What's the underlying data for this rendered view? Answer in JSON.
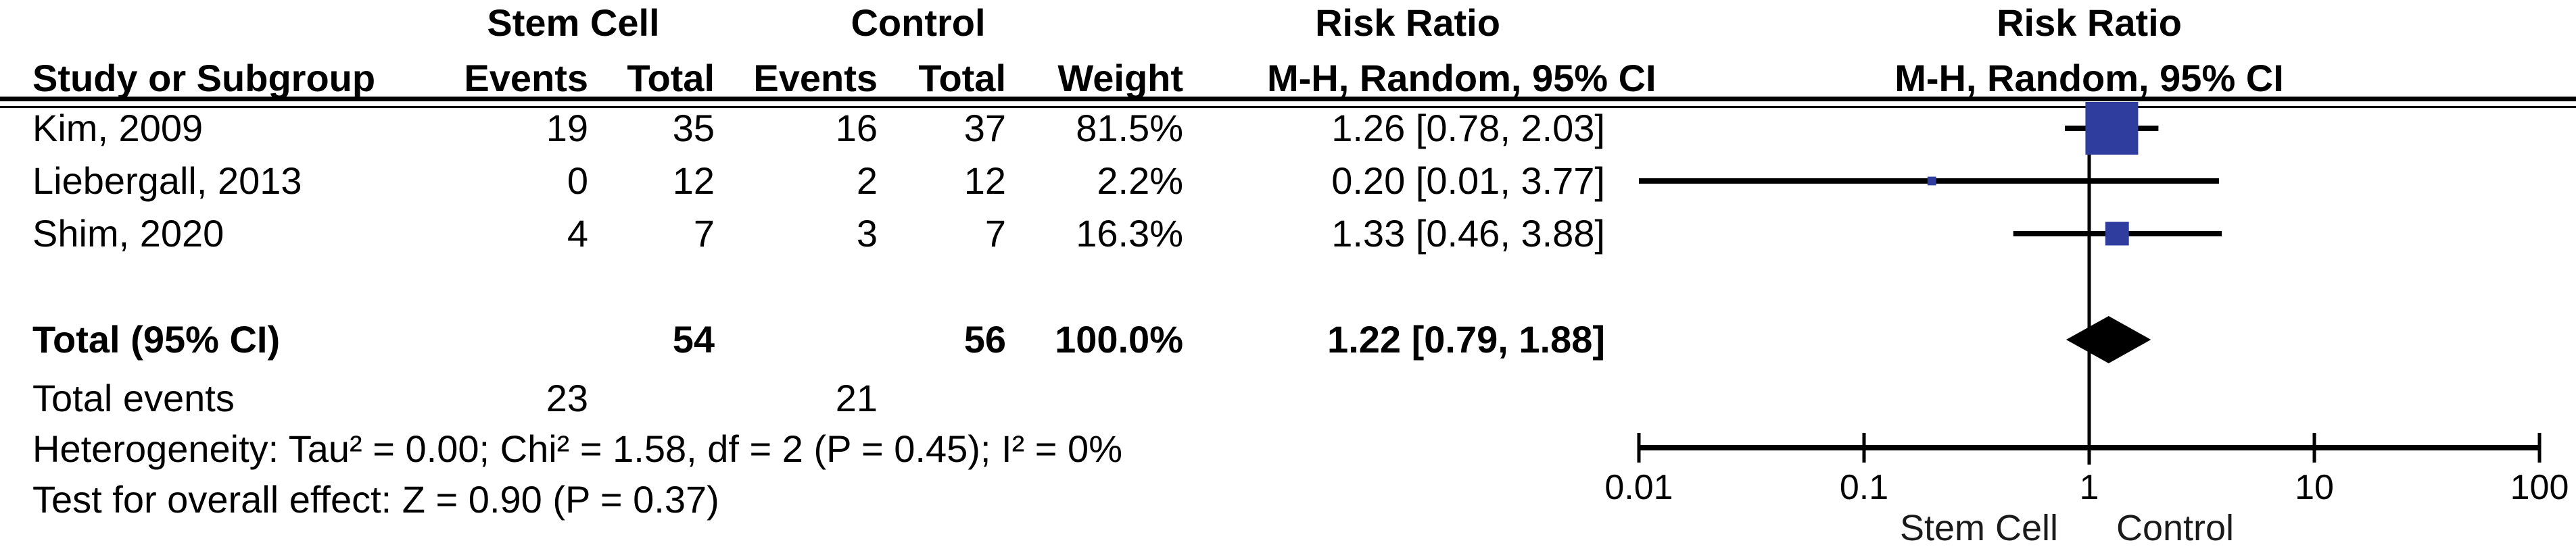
{
  "table": {
    "group_headers": {
      "stem_cell": "Stem Cell",
      "control": "Control",
      "risk_ratio": "Risk Ratio"
    },
    "column_headers": {
      "study": "Study or Subgroup",
      "events1": "Events",
      "total1": "Total",
      "events2": "Events",
      "total2": "Total",
      "weight": "Weight",
      "ci": "M-H, Random, 95% CI"
    },
    "total_row": {
      "label": "Total (95% CI)",
      "total1": "54",
      "total2": "56",
      "weight": "100.0%",
      "ci": "1.22 [0.79, 1.88]"
    },
    "total_events_row": {
      "label": "Total events",
      "events1": "23",
      "events2": "21"
    },
    "heterogeneity": "Heterogeneity: Tau² = 0.00; Chi² = 1.58, df = 2 (P = 0.45); I² = 0%",
    "overall_effect": "Test for overall effect: Z = 0.90 (P = 0.37)"
  },
  "plot": {
    "header_line1": "Risk Ratio",
    "header_line2": "M-H, Random, 95% CI",
    "footer_left": "Stem Cell",
    "footer_right": "Control",
    "axis_ticks": [
      0.01,
      0.1,
      1,
      10,
      100
    ],
    "marker_color": "#2F3E9E",
    "diamond_color": "#000000",
    "line_color": "#000000"
  },
  "chart_data": {
    "type": "forest",
    "effect_measure": "Risk Ratio, M-H, Random, 95% CI",
    "x_scale": "log10",
    "x_range": [
      0.01,
      100
    ],
    "x_ticks": [
      0.01,
      0.1,
      1,
      10,
      100
    ],
    "reference_line": 1,
    "studies": [
      {
        "label": "Kim, 2009",
        "events_treat": 19,
        "total_treat": 35,
        "events_ctrl": 16,
        "total_ctrl": 37,
        "weight_pct": 81.5,
        "rr": 1.26,
        "ci_low": 0.78,
        "ci_high": 2.03,
        "ci_text": "1.26 [0.78, 2.03]"
      },
      {
        "label": "Liebergall, 2013",
        "events_treat": 0,
        "total_treat": 12,
        "events_ctrl": 2,
        "total_ctrl": 12,
        "weight_pct": 2.2,
        "rr": 0.2,
        "ci_low": 0.01,
        "ci_high": 3.77,
        "ci_text": "0.20 [0.01, 3.77]"
      },
      {
        "label": "Shim, 2020",
        "events_treat": 4,
        "total_treat": 7,
        "events_ctrl": 3,
        "total_ctrl": 7,
        "weight_pct": 16.3,
        "rr": 1.33,
        "ci_low": 0.46,
        "ci_high": 3.88,
        "ci_text": "1.33 [0.46, 3.88]"
      }
    ],
    "total": {
      "label": "Total (95% CI)",
      "total_treat": 54,
      "total_ctrl": 56,
      "weight_pct": 100.0,
      "rr": 1.22,
      "ci_low": 0.79,
      "ci_high": 1.88,
      "total_events_treat": 23,
      "total_events_ctrl": 21
    }
  }
}
